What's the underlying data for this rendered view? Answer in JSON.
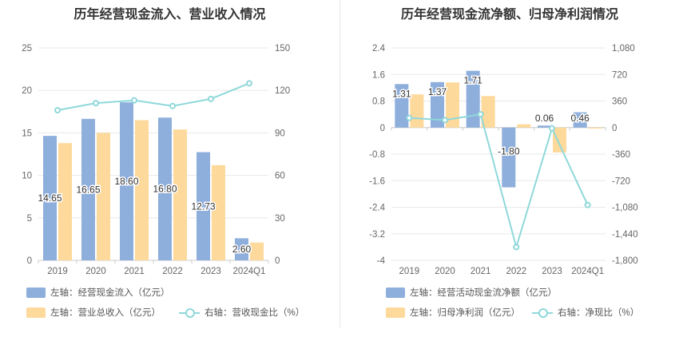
{
  "colors": {
    "bar_primary": "#8eaedc",
    "bar_secondary": "#fdd99b",
    "line": "#8fd8da",
    "axis_text": "#666666",
    "grid": "#e8e8e8",
    "axis_line": "#cccccc",
    "title": "#333333"
  },
  "legend_left": {
    "item1": "左轴：经营现金流入（亿元）",
    "item2": "左轴：营业总收入（亿元）",
    "item3": "右轴：营收现金比（%）"
  },
  "legend_right": {
    "item1": "左轴：经营活动现金流净额（亿元）",
    "item2": "左轴：归母净利润（亿元）",
    "item3": "右轴：净现比（%）"
  },
  "chart_data": [
    {
      "type": "bar",
      "title": "历年经营现金流入、营业收入情况",
      "categories": [
        "2019",
        "2020",
        "2021",
        "2022",
        "2023",
        "2024Q1"
      ],
      "left_axis": {
        "min": 0,
        "max": 25,
        "ticks": [
          "0",
          "5",
          "10",
          "15",
          "20",
          "25"
        ]
      },
      "right_axis": {
        "min": 0,
        "max": 150,
        "ticks": [
          "0",
          "30",
          "60",
          "90",
          "120",
          "150"
        ]
      },
      "grid": true,
      "legend_position": "bottom-left",
      "series": [
        {
          "name": "左轴：经营现金流入（亿元）",
          "kind": "bar",
          "axis": "left",
          "values": [
            14.65,
            16.65,
            18.6,
            16.8,
            12.73,
            2.6
          ],
          "labels": [
            "14.65",
            "16.65",
            "18.60",
            "16.80",
            "12.73",
            "2.60"
          ]
        },
        {
          "name": "左轴：营业总收入（亿元）",
          "kind": "bar",
          "axis": "left",
          "values": [
            13.8,
            15.0,
            16.5,
            15.4,
            11.2,
            2.1
          ]
        },
        {
          "name": "右轴：营收现金比（%）",
          "kind": "line",
          "axis": "right",
          "values": [
            106,
            111,
            113,
            109,
            114,
            125
          ]
        }
      ]
    },
    {
      "type": "bar",
      "title": "历年经营现金流净额、归母净利润情况",
      "categories": [
        "2019",
        "2020",
        "2021",
        "2022",
        "2023",
        "2024Q1"
      ],
      "left_axis": {
        "min": -4,
        "max": 2.4,
        "ticks": [
          "-4",
          "-3.2",
          "-2.4",
          "-1.6",
          "-0.8",
          "0",
          "0.8",
          "1.6",
          "2.4"
        ]
      },
      "right_axis": {
        "min": -1800,
        "max": 1080,
        "ticks": [
          "-1,800",
          "-1,440",
          "-1,080",
          "-720",
          "-360",
          "0",
          "360",
          "720",
          "1,080"
        ]
      },
      "grid": true,
      "legend_position": "bottom-left",
      "series": [
        {
          "name": "左轴：经营活动现金流净额（亿元）",
          "kind": "bar",
          "axis": "left",
          "values": [
            1.31,
            1.37,
            1.71,
            -1.8,
            0.06,
            0.46
          ],
          "labels": [
            "1.31",
            "1.37",
            "1.71",
            "-1.80",
            "0.06",
            "0.46"
          ]
        },
        {
          "name": "左轴：归母净利润（亿元）",
          "kind": "bar",
          "axis": "left",
          "values": [
            1.0,
            1.36,
            0.95,
            0.1,
            -0.75,
            -0.03
          ]
        },
        {
          "name": "右轴：净现比（%）",
          "kind": "line",
          "axis": "right",
          "values": [
            131,
            101,
            180,
            -1620,
            -10,
            -1050
          ]
        }
      ]
    }
  ]
}
